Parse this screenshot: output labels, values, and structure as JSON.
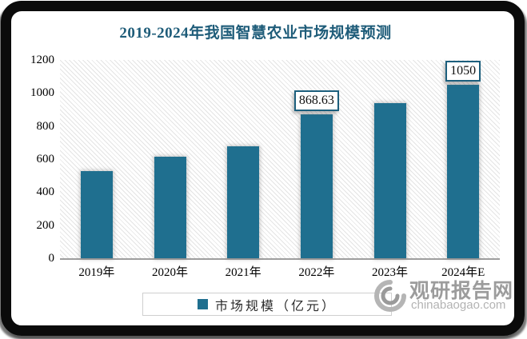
{
  "title": {
    "text": "2019-2024年我国智慧农业市场规模预测"
  },
  "chart_data": {
    "type": "bar",
    "title": "2019-2024年我国智慧农业市场规模预测",
    "categories": [
      "2019年",
      "2020年",
      "2021年",
      "2022年",
      "2023年",
      "2024年E"
    ],
    "series": [
      {
        "name": "市场规模（亿元）",
        "values": [
          525,
          615,
          678,
          868.63,
          937,
          1050
        ]
      }
    ],
    "data_labels": [
      "",
      "",
      "",
      "868.63",
      "",
      "1050"
    ],
    "xlabel": "",
    "ylabel": "",
    "ylim": [
      0,
      1200
    ],
    "yticks": [
      0,
      200,
      400,
      600,
      800,
      1000,
      1200
    ],
    "grid": false,
    "legend_position": "bottom",
    "bar_color": "#1F6F8F",
    "plot_background": "white-with-light-diagonal-hatch"
  },
  "legend": {
    "label": "市场规模（亿元）",
    "swatch_color": "#1F6F8F"
  },
  "watermark": {
    "name": "观研报告网",
    "domain": "chinabaogao.com"
  },
  "colors": {
    "bar": "#1F6F8F",
    "title_text": "#1E5C79",
    "axis_line": "#9E9E9E",
    "data_label_border": "#1C5F7D",
    "legend_border": "#CFCFCF",
    "watermark_name": "#9C9C9C",
    "watermark_domain": "#B3B3B3",
    "frame": "#0B0B0B"
  }
}
